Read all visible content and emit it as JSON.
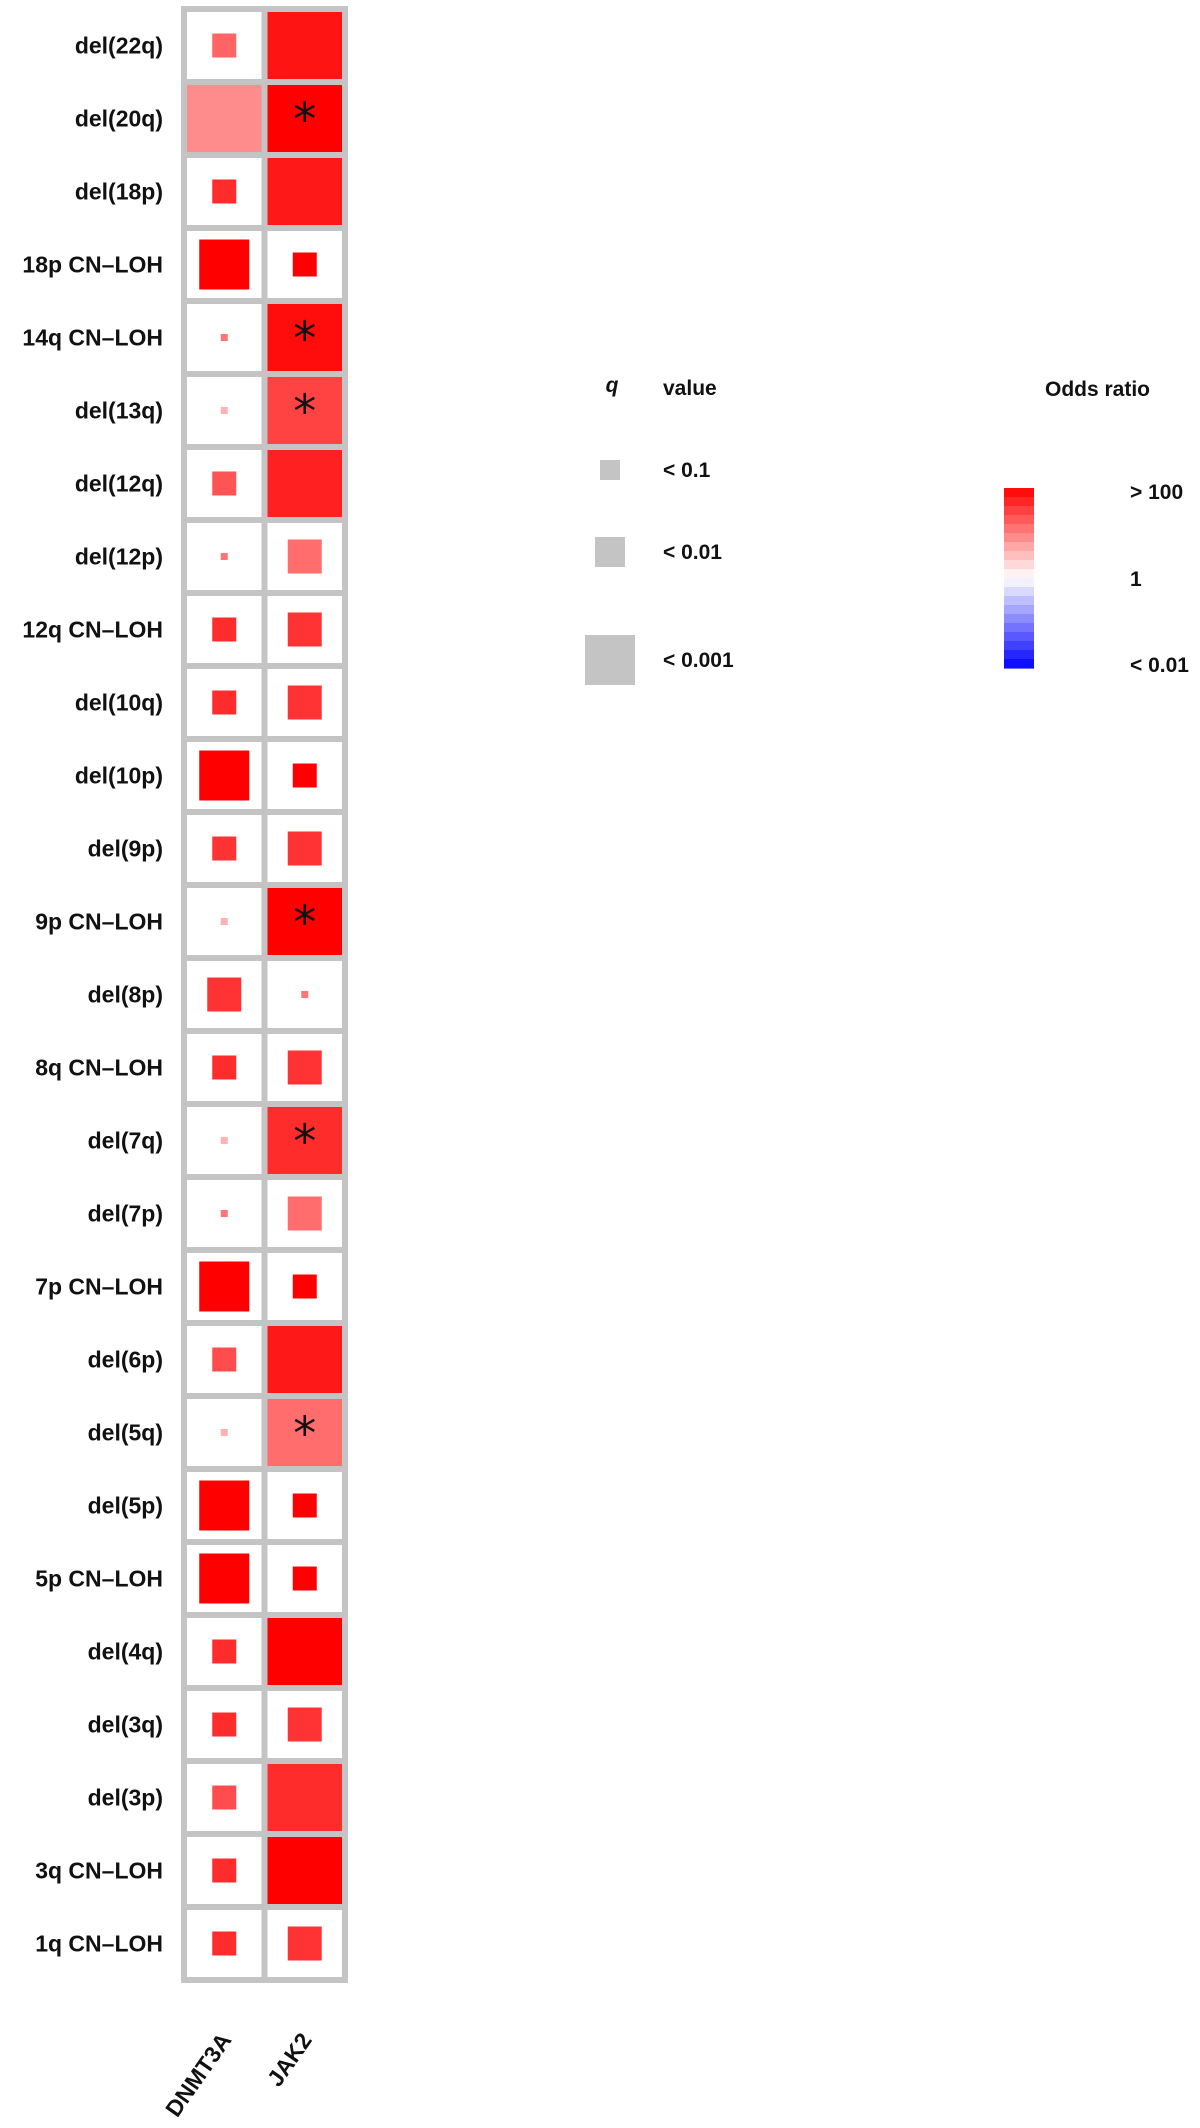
{
  "chart_data": {
    "type": "heatmap",
    "encoding": "square size = q value; fill color = odds ratio; asterisk = marked cell",
    "columns": [
      "DNMT3A",
      "JAK2"
    ],
    "rows": [
      {
        "label": "del(22q)",
        "cells": [
          {
            "size": "lt0.1",
            "or": 16,
            "star": false
          },
          {
            "size": "full",
            "or": 70,
            "star": false
          }
        ]
      },
      {
        "label": "del(20q)",
        "cells": [
          {
            "size": "full",
            "or": 8,
            "star": false
          },
          {
            "size": "full",
            "or": 100,
            "star": true
          }
        ]
      },
      {
        "label": "del(18p)",
        "cells": [
          {
            "size": "lt0.1",
            "or": 45,
            "star": false
          },
          {
            "size": "full",
            "or": 65,
            "star": false
          }
        ]
      },
      {
        "label": "18p CN–LOH",
        "cells": [
          {
            "size": "lt0.001",
            "or": 100,
            "star": false
          },
          {
            "size": "lt0.1",
            "or": 100,
            "star": false
          }
        ]
      },
      {
        "label": "14q CN–LOH",
        "cells": [
          {
            "size": "tiny",
            "or": 12,
            "star": false
          },
          {
            "size": "full",
            "or": 80,
            "star": true
          }
        ]
      },
      {
        "label": "del(13q)",
        "cells": [
          {
            "size": "tiny",
            "or": 4,
            "star": false
          },
          {
            "size": "full",
            "or": 30,
            "star": true
          }
        ]
      },
      {
        "label": "del(12q)",
        "cells": [
          {
            "size": "lt0.1",
            "or": 22,
            "star": false
          },
          {
            "size": "full",
            "or": 55,
            "star": false
          }
        ]
      },
      {
        "label": "del(12p)",
        "cells": [
          {
            "size": "tiny",
            "or": 12,
            "star": false
          },
          {
            "size": "lt0.01",
            "or": 14,
            "star": false
          }
        ]
      },
      {
        "label": "12q CN–LOH",
        "cells": [
          {
            "size": "lt0.1",
            "or": 45,
            "star": false
          },
          {
            "size": "lt0.01",
            "or": 40,
            "star": false
          }
        ]
      },
      {
        "label": "del(10q)",
        "cells": [
          {
            "size": "lt0.1",
            "or": 45,
            "star": false
          },
          {
            "size": "lt0.01",
            "or": 40,
            "star": false
          }
        ]
      },
      {
        "label": "del(10p)",
        "cells": [
          {
            "size": "lt0.001",
            "or": 100,
            "star": false
          },
          {
            "size": "lt0.1",
            "or": 100,
            "star": false
          }
        ]
      },
      {
        "label": "del(9p)",
        "cells": [
          {
            "size": "lt0.1",
            "or": 40,
            "star": false
          },
          {
            "size": "lt0.01",
            "or": 40,
            "star": false
          }
        ]
      },
      {
        "label": "9p CN–LOH",
        "cells": [
          {
            "size": "tiny",
            "or": 4,
            "star": false
          },
          {
            "size": "full",
            "or": 100,
            "star": true
          }
        ]
      },
      {
        "label": "del(8p)",
        "cells": [
          {
            "size": "lt0.01",
            "or": 40,
            "star": false
          },
          {
            "size": "tiny",
            "or": 12,
            "star": false
          }
        ]
      },
      {
        "label": "8q CN–LOH",
        "cells": [
          {
            "size": "lt0.1",
            "or": 45,
            "star": false
          },
          {
            "size": "lt0.01",
            "or": 40,
            "star": false
          }
        ]
      },
      {
        "label": "del(7q)",
        "cells": [
          {
            "size": "tiny",
            "or": 4,
            "star": false
          },
          {
            "size": "full",
            "or": 45,
            "star": true
          }
        ]
      },
      {
        "label": "del(7p)",
        "cells": [
          {
            "size": "tiny",
            "or": 12,
            "star": false
          },
          {
            "size": "lt0.01",
            "or": 14,
            "star": false
          }
        ]
      },
      {
        "label": "7p CN–LOH",
        "cells": [
          {
            "size": "lt0.001",
            "or": 100,
            "star": false
          },
          {
            "size": "lt0.1",
            "or": 100,
            "star": false
          }
        ]
      },
      {
        "label": "del(6p)",
        "cells": [
          {
            "size": "lt0.1",
            "or": 25,
            "star": false
          },
          {
            "size": "full",
            "or": 65,
            "star": false
          }
        ]
      },
      {
        "label": "del(5q)",
        "cells": [
          {
            "size": "tiny",
            "or": 4,
            "star": false
          },
          {
            "size": "full",
            "or": 14,
            "star": true
          }
        ]
      },
      {
        "label": "del(5p)",
        "cells": [
          {
            "size": "lt0.001",
            "or": 100,
            "star": false
          },
          {
            "size": "lt0.1",
            "or": 100,
            "star": false
          }
        ]
      },
      {
        "label": "5p CN–LOH",
        "cells": [
          {
            "size": "lt0.001",
            "or": 100,
            "star": false
          },
          {
            "size": "lt0.1",
            "or": 100,
            "star": false
          }
        ]
      },
      {
        "label": "del(4q)",
        "cells": [
          {
            "size": "lt0.1",
            "or": 45,
            "star": false
          },
          {
            "size": "full",
            "or": 100,
            "star": false
          }
        ]
      },
      {
        "label": "del(3q)",
        "cells": [
          {
            "size": "lt0.1",
            "or": 45,
            "star": false
          },
          {
            "size": "lt0.01",
            "or": 40,
            "star": false
          }
        ]
      },
      {
        "label": "del(3p)",
        "cells": [
          {
            "size": "lt0.1",
            "or": 25,
            "star": false
          },
          {
            "size": "full",
            "or": 45,
            "star": false
          }
        ]
      },
      {
        "label": "3q CN–LOH",
        "cells": [
          {
            "size": "lt0.1",
            "or": 45,
            "star": false
          },
          {
            "size": "full",
            "or": 100,
            "star": false
          }
        ]
      },
      {
        "label": "1q CN–LOH",
        "cells": [
          {
            "size": "lt0.1",
            "or": 45,
            "star": false
          },
          {
            "size": "lt0.01",
            "or": 40,
            "star": false
          }
        ]
      }
    ],
    "size_legend": {
      "title_q": "q",
      "title_rest": "value",
      "items": [
        {
          "key": "lt0.1",
          "label": "< 0.1"
        },
        {
          "key": "lt0.01",
          "label": "< 0.01"
        },
        {
          "key": "lt0.001",
          "label": "< 0.001"
        }
      ]
    },
    "color_legend": {
      "title": "Odds ratio",
      "labels": [
        "> 100",
        "1",
        "< 0.01"
      ],
      "range": [
        0.01,
        100
      ],
      "scale": "log"
    },
    "colors": {
      "grid": "#c4c4c4",
      "legend_square": "#c4c4c4",
      "high": "#ff0000",
      "mid": "#ffffff",
      "low": "#0000ff",
      "star": "#111111"
    }
  }
}
